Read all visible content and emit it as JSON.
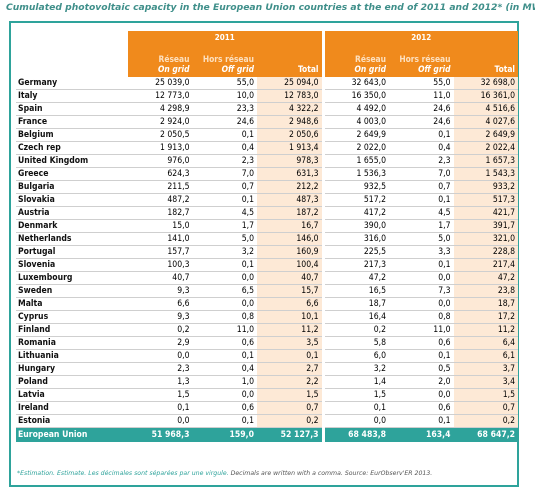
{
  "caption": "Cumulated photovoltaic capacity in the European Union countries at the end of 2011 and 2012* (in MWp)",
  "years": [
    "2011",
    "2012"
  ],
  "headers": {
    "ongrid_fr": "Réseau",
    "ongrid_en": "On grid",
    "offgrid_fr": "Hors réseau",
    "offgrid_en": "Off grid",
    "total": "Total"
  },
  "rows": [
    {
      "country": "Germany",
      "v": [
        "25 039,0",
        "55,0",
        "25 094,0",
        "32 643,0",
        "55,0",
        "32 698,0"
      ]
    },
    {
      "country": "Italy",
      "v": [
        "12 773,0",
        "10,0",
        "12 783,0",
        "16 350,0",
        "11,0",
        "16 361,0"
      ]
    },
    {
      "country": "Spain",
      "v": [
        "4 298,9",
        "23,3",
        "4 322,2",
        "4 492,0",
        "24,6",
        "4 516,6"
      ]
    },
    {
      "country": "France",
      "v": [
        "2 924,0",
        "24,6",
        "2 948,6",
        "4 003,0",
        "24,6",
        "4 027,6"
      ]
    },
    {
      "country": "Belgium",
      "v": [
        "2 050,5",
        "0,1",
        "2 050,6",
        "2 649,9",
        "0,1",
        "2 649,9"
      ]
    },
    {
      "country": "Czech rep",
      "v": [
        "1 913,0",
        "0,4",
        "1 913,4",
        "2 022,0",
        "0,4",
        "2 022,4"
      ]
    },
    {
      "country": "United Kingdom",
      "v": [
        "976,0",
        "2,3",
        "978,3",
        "1 655,0",
        "2,3",
        "1 657,3"
      ]
    },
    {
      "country": "Greece",
      "v": [
        "624,3",
        "7,0",
        "631,3",
        "1 536,3",
        "7,0",
        "1 543,3"
      ]
    },
    {
      "country": "Bulgaria",
      "v": [
        "211,5",
        "0,7",
        "212,2",
        "932,5",
        "0,7",
        "933,2"
      ]
    },
    {
      "country": "Slovakia",
      "v": [
        "487,2",
        "0,1",
        "487,3",
        "517,2",
        "0,1",
        "517,3"
      ]
    },
    {
      "country": "Austria",
      "v": [
        "182,7",
        "4,5",
        "187,2",
        "417,2",
        "4,5",
        "421,7"
      ]
    },
    {
      "country": "Denmark",
      "v": [
        "15,0",
        "1,7",
        "16,7",
        "390,0",
        "1,7",
        "391,7"
      ]
    },
    {
      "country": "Netherlands",
      "v": [
        "141,0",
        "5,0",
        "146,0",
        "316,0",
        "5,0",
        "321,0"
      ]
    },
    {
      "country": "Portugal",
      "v": [
        "157,7",
        "3,2",
        "160,9",
        "225,5",
        "3,3",
        "228,8"
      ]
    },
    {
      "country": "Slovenia",
      "v": [
        "100,3",
        "0,1",
        "100,4",
        "217,3",
        "0,1",
        "217,4"
      ]
    },
    {
      "country": "Luxembourg",
      "v": [
        "40,7",
        "0,0",
        "40,7",
        "47,2",
        "0,0",
        "47,2"
      ]
    },
    {
      "country": "Sweden",
      "v": [
        "9,3",
        "6,5",
        "15,7",
        "16,5",
        "7,3",
        "23,8"
      ]
    },
    {
      "country": "Malta",
      "v": [
        "6,6",
        "0,0",
        "6,6",
        "18,7",
        "0,0",
        "18,7"
      ]
    },
    {
      "country": "Cyprus",
      "v": [
        "9,3",
        "0,8",
        "10,1",
        "16,4",
        "0,8",
        "17,2"
      ]
    },
    {
      "country": "Finland",
      "v": [
        "0,2",
        "11,0",
        "11,2",
        "0,2",
        "11,0",
        "11,2"
      ]
    },
    {
      "country": "Romania",
      "v": [
        "2,9",
        "0,6",
        "3,5",
        "5,8",
        "0,6",
        "6,4"
      ]
    },
    {
      "country": "Lithuania",
      "v": [
        "0,0",
        "0,1",
        "0,1",
        "6,0",
        "0,1",
        "6,1"
      ]
    },
    {
      "country": "Hungary",
      "v": [
        "2,3",
        "0,4",
        "2,7",
        "3,2",
        "0,5",
        "3,7"
      ]
    },
    {
      "country": "Poland",
      "v": [
        "1,3",
        "1,0",
        "2,2",
        "1,4",
        "2,0",
        "3,4"
      ]
    },
    {
      "country": "Latvia",
      "v": [
        "1,5",
        "0,0",
        "1,5",
        "1,5",
        "0,0",
        "1,5"
      ]
    },
    {
      "country": "Ireland",
      "v": [
        "0,1",
        "0,6",
        "0,7",
        "0,1",
        "0,6",
        "0,7"
      ]
    },
    {
      "country": "Estonia",
      "v": [
        "0,0",
        "0,1",
        "0,2",
        "0,0",
        "0,1",
        "0,2"
      ]
    }
  ],
  "total_row": {
    "country": "European Union",
    "v": [
      "51 968,3",
      "159,0",
      "52 127,3",
      "68 483,8",
      "163,4",
      "68 647,2"
    ]
  },
  "footnote_fr": "*Estimation. Estimate. Les décimales sont séparées par une virgule.",
  "footnote_en": "Decimals are written with a comma. Source: EurObserv'ER 2013.",
  "colors": {
    "orange": "#f08a1c",
    "teal": "#2ea39b",
    "peach": "#fde9d6"
  }
}
